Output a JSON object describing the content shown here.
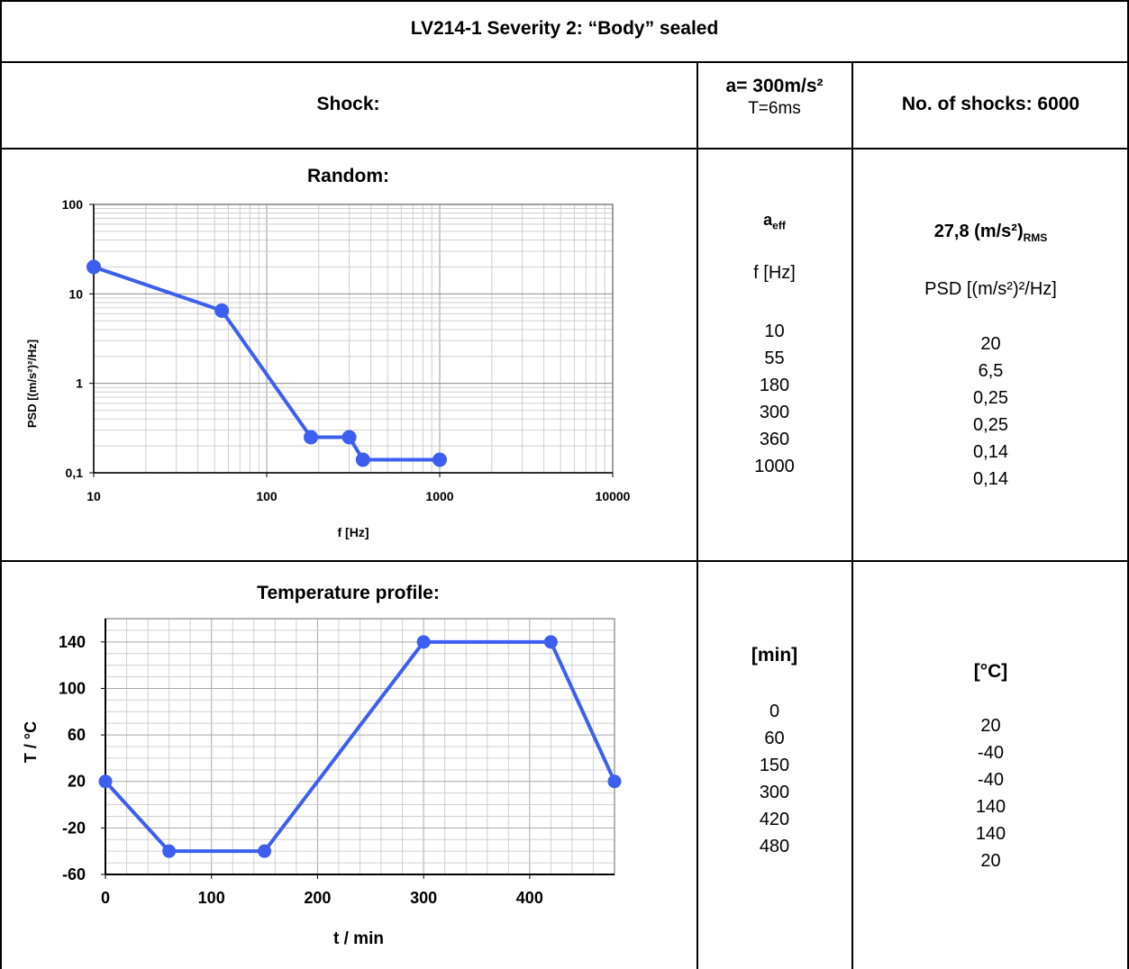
{
  "title": "LV214-1 Severity 2: “Body” sealed",
  "shock": {
    "label": "Shock:",
    "acceleration": "a= 300m/s²",
    "duration": "T=6ms",
    "count": "No. of shocks: 6000"
  },
  "random": {
    "label": "Random:",
    "aeff_main": "a",
    "aeff_sub": "eff",
    "rms_main": "27,8 (m/s²)",
    "rms_sub": "RMS",
    "freq_header": "f [Hz]",
    "psd_header": "PSD [(m/s²)²/Hz]",
    "freq_values": [
      "10",
      "55",
      "180",
      "300",
      "360",
      "1000"
    ],
    "psd_values": [
      "20",
      "6,5",
      "0,25",
      "0,25",
      "0,14",
      "0,14"
    ]
  },
  "temperature": {
    "label": "Temperature profile:",
    "time_header": "[min]",
    "temp_header": "[°C]",
    "time_values": [
      "0",
      "60",
      "150",
      "300",
      "420",
      "480"
    ],
    "temp_values": [
      "20",
      "-40",
      "-40",
      "140",
      "140",
      "20"
    ]
  },
  "chart_data": [
    {
      "type": "line",
      "title": "Random:",
      "xlabel": "f [Hz]",
      "ylabel": "PSD [(m/s²)²/Hz]",
      "x_scale": "log",
      "y_scale": "log",
      "xlim": [
        10,
        10000
      ],
      "ylim": [
        0.1,
        100
      ],
      "x_ticks": [
        "10",
        "100",
        "1000",
        "10000"
      ],
      "y_ticks": [
        "0,1",
        "1",
        "10",
        "100"
      ],
      "grid": true,
      "color": "#3d5ff0",
      "x": [
        10,
        55,
        180,
        300,
        360,
        1000
      ],
      "y": [
        20,
        6.5,
        0.25,
        0.25,
        0.14,
        0.14
      ]
    },
    {
      "type": "line",
      "title": "Temperature profile:",
      "xlabel": "t / min",
      "ylabel": "T / °C",
      "xlim": [
        0,
        480
      ],
      "ylim": [
        -60,
        160
      ],
      "x_ticks": [
        "0",
        "100",
        "200",
        "300",
        "400"
      ],
      "y_ticks": [
        "-60",
        "-20",
        "20",
        "60",
        "100",
        "140"
      ],
      "grid": true,
      "color": "#3d5ff0",
      "x": [
        0,
        60,
        150,
        300,
        420,
        480
      ],
      "y": [
        20,
        -40,
        -40,
        140,
        140,
        20
      ]
    }
  ]
}
